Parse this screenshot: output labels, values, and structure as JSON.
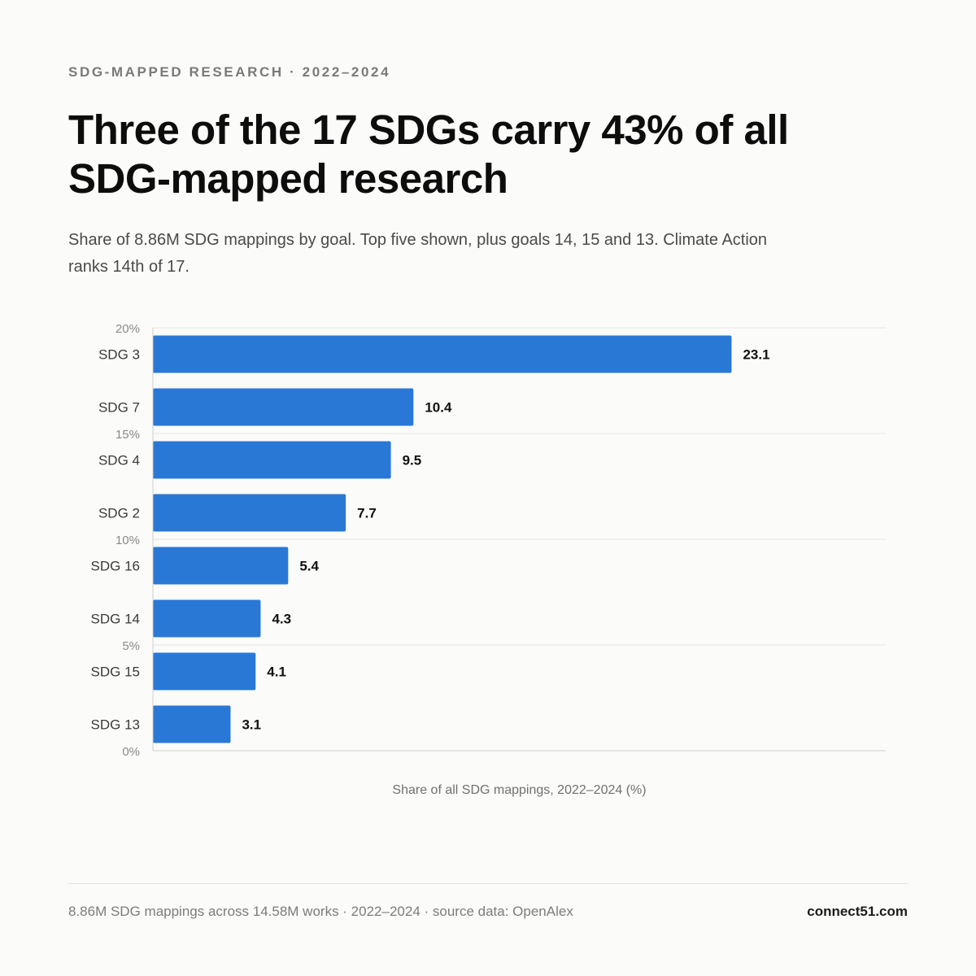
{
  "kicker": "SDG-MAPPED RESEARCH · 2022–2024",
  "title": "Three of the 17 SDGs carry 43% of all SDG-mapped research",
  "subtitle": "Share of 8.86M SDG mappings by goal. Top five shown, plus goals 14, 15 and 13. Climate Action ranks 14th of 17.",
  "footer": {
    "note": "8.86M SDG mappings across 14.58M works · 2022–2024 · source data: OpenAlex",
    "brand": "connect51.com"
  },
  "colors": {
    "bar": "#2a78d6",
    "grid": "#e6e6e3",
    "axis": "#cfcfcc"
  },
  "chart_data": {
    "type": "bar",
    "orientation": "horizontal",
    "categories": [
      "SDG 3",
      "SDG 7",
      "SDG 4",
      "SDG 2",
      "SDG 16",
      "SDG 14",
      "SDG 15",
      "SDG 13"
    ],
    "values": [
      23.1,
      10.4,
      9.5,
      7.7,
      5.4,
      4.3,
      4.1,
      3.1
    ],
    "value_labels": [
      "23.1",
      "10.4",
      "9.5",
      "7.7",
      "5.4",
      "4.3",
      "4.1",
      "3.1"
    ],
    "ticks": [
      {
        "value": 20,
        "label": "20%"
      },
      {
        "value": 15,
        "label": "15%"
      },
      {
        "value": 10,
        "label": "10%"
      },
      {
        "value": 5,
        "label": "5%"
      },
      {
        "value": 0,
        "label": "0%"
      }
    ],
    "title": "",
    "xlabel": "Share of all SDG mappings, 2022–2024 (%)",
    "ylabel": "",
    "grid": true,
    "legend": "none"
  }
}
